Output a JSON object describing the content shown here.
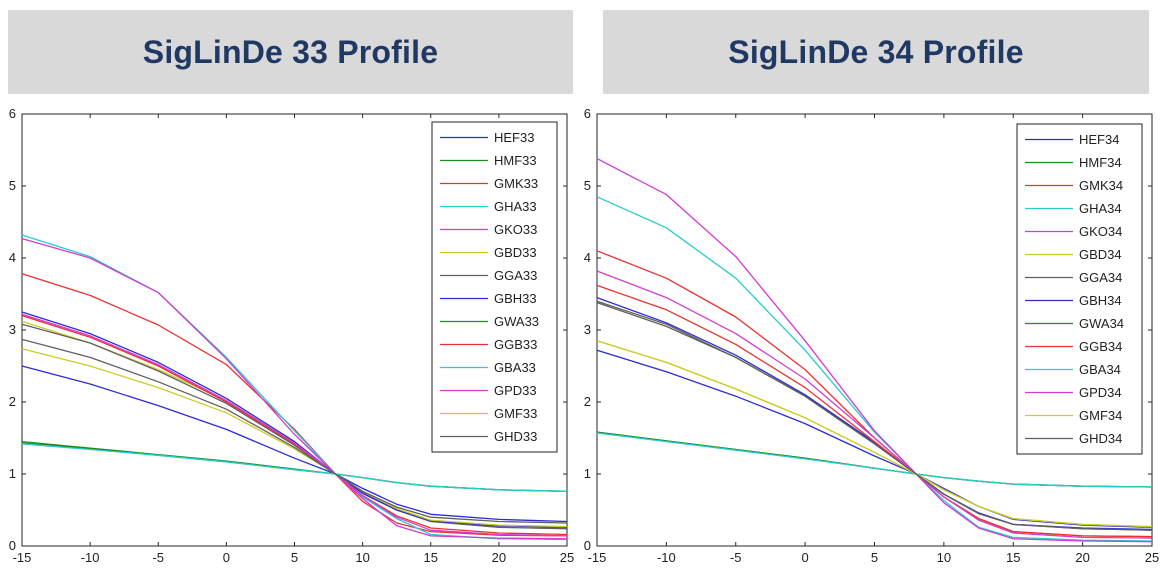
{
  "panels": [
    {
      "title": "SigLinDe 33 Profile"
    },
    {
      "title": "SigLinDe 34 Profile"
    }
  ],
  "chart_data": [
    {
      "type": "line",
      "title": "SigLinDe 33 Profile",
      "xlabel": "",
      "ylabel": "",
      "xlim": [
        -15,
        25
      ],
      "ylim": [
        0,
        6
      ],
      "xticks": [
        -15,
        -10,
        -5,
        0,
        5,
        10,
        15,
        20,
        25
      ],
      "yticks": [
        0,
        1,
        2,
        3,
        4,
        5,
        6
      ],
      "legend_position": "top-right",
      "grid": false,
      "x": [
        -15,
        -10,
        -5,
        0,
        5,
        8,
        10,
        12.5,
        15,
        20,
        25
      ],
      "series": [
        {
          "name": "HEF33",
          "color": "#2b2bd9",
          "values": [
            2.5,
            2.25,
            1.95,
            1.62,
            1.22,
            1.0,
            0.8,
            0.58,
            0.44,
            0.37,
            0.34
          ]
        },
        {
          "name": "HMF33",
          "color": "#1e8c1e",
          "values": [
            1.45,
            1.36,
            1.27,
            1.18,
            1.07,
            1.0,
            0.95,
            0.88,
            0.83,
            0.78,
            0.76
          ]
        },
        {
          "name": "GMK33",
          "color": "#ee3030",
          "values": [
            3.78,
            3.48,
            3.07,
            2.52,
            1.62,
            1.0,
            0.62,
            0.32,
            0.2,
            0.15,
            0.14
          ]
        },
        {
          "name": "GHA33",
          "color": "#28cccc",
          "values": [
            4.32,
            4.02,
            3.52,
            2.62,
            1.6,
            1.0,
            0.68,
            0.38,
            0.16,
            0.1,
            0.09
          ]
        },
        {
          "name": "GKO33",
          "color": "#d23cd2",
          "values": [
            4.27,
            4.0,
            3.52,
            2.6,
            1.55,
            1.0,
            0.66,
            0.28,
            0.14,
            0.11,
            0.1
          ]
        },
        {
          "name": "GBD33",
          "color": "#cccc28",
          "values": [
            3.12,
            2.82,
            2.45,
            2.02,
            1.43,
            1.0,
            0.74,
            0.5,
            0.34,
            0.26,
            0.24
          ]
        },
        {
          "name": "GGA33",
          "color": "#606060",
          "values": [
            3.08,
            2.82,
            2.43,
            1.98,
            1.4,
            1.0,
            0.74,
            0.5,
            0.34,
            0.26,
            0.24
          ]
        },
        {
          "name": "GBH33",
          "color": "#2b2bd9",
          "values": [
            3.25,
            2.95,
            2.55,
            2.05,
            1.45,
            1.0,
            0.73,
            0.5,
            0.35,
            0.28,
            0.26
          ]
        },
        {
          "name": "GWA33",
          "color": "#1e8c1e",
          "values": [
            1.43,
            1.35,
            1.26,
            1.17,
            1.06,
            1.0,
            0.95,
            0.88,
            0.83,
            0.78,
            0.76
          ]
        },
        {
          "name": "GGB33",
          "color": "#ee3030",
          "values": [
            3.2,
            2.9,
            2.5,
            2.0,
            1.42,
            1.0,
            0.7,
            0.42,
            0.25,
            0.18,
            0.16
          ]
        },
        {
          "name": "GBA33",
          "color": "#28cccc",
          "values": [
            1.42,
            1.34,
            1.26,
            1.17,
            1.06,
            1.0,
            0.95,
            0.88,
            0.83,
            0.78,
            0.76
          ]
        },
        {
          "name": "GPD33",
          "color": "#d23cd2",
          "values": [
            3.22,
            2.92,
            2.52,
            2.02,
            1.43,
            1.0,
            0.7,
            0.4,
            0.22,
            0.16,
            0.14
          ]
        },
        {
          "name": "GMF33",
          "color": "#cccc28",
          "values": [
            2.74,
            2.5,
            2.2,
            1.85,
            1.35,
            1.0,
            0.76,
            0.52,
            0.36,
            0.29,
            0.27
          ]
        },
        {
          "name": "GHD33",
          "color": "#606060",
          "values": [
            2.87,
            2.62,
            2.28,
            1.9,
            1.37,
            1.0,
            0.76,
            0.54,
            0.4,
            0.34,
            0.32
          ]
        }
      ]
    },
    {
      "type": "line",
      "title": "SigLinDe 34 Profile",
      "xlabel": "",
      "ylabel": "",
      "xlim": [
        -15,
        25
      ],
      "ylim": [
        0,
        6
      ],
      "xticks": [
        -15,
        -10,
        -5,
        0,
        5,
        10,
        15,
        20,
        25
      ],
      "yticks": [
        0,
        1,
        2,
        3,
        4,
        5,
        6
      ],
      "legend_position": "top-right",
      "grid": false,
      "x": [
        -15,
        -10,
        -5,
        0,
        5,
        8,
        10,
        12.5,
        15,
        20,
        25
      ],
      "series": [
        {
          "name": "HEF34",
          "color": "#2b2bd9",
          "values": [
            2.72,
            2.42,
            2.08,
            1.7,
            1.25,
            1.0,
            0.8,
            0.55,
            0.37,
            0.29,
            0.26
          ]
        },
        {
          "name": "HMF34",
          "color": "#1e8c1e",
          "values": [
            1.58,
            1.46,
            1.34,
            1.22,
            1.08,
            1.0,
            0.95,
            0.9,
            0.86,
            0.83,
            0.82
          ]
        },
        {
          "name": "GMK34",
          "color": "#ee3030",
          "values": [
            4.1,
            3.72,
            3.18,
            2.45,
            1.5,
            1.0,
            0.68,
            0.38,
            0.2,
            0.14,
            0.13
          ]
        },
        {
          "name": "GHA34",
          "color": "#28cccc",
          "values": [
            4.85,
            4.42,
            3.72,
            2.72,
            1.58,
            1.0,
            0.63,
            0.26,
            0.12,
            0.08,
            0.07
          ]
        },
        {
          "name": "GKO34",
          "color": "#d23cd2",
          "values": [
            5.38,
            4.88,
            4.02,
            2.85,
            1.6,
            1.0,
            0.6,
            0.25,
            0.1,
            0.07,
            0.06
          ]
        },
        {
          "name": "GBD34",
          "color": "#cccc28",
          "values": [
            2.85,
            2.55,
            2.18,
            1.78,
            1.3,
            1.0,
            0.78,
            0.55,
            0.38,
            0.3,
            0.27
          ]
        },
        {
          "name": "GGA34",
          "color": "#606060",
          "values": [
            3.38,
            3.05,
            2.62,
            2.08,
            1.42,
            1.0,
            0.72,
            0.45,
            0.3,
            0.24,
            0.22
          ]
        },
        {
          "name": "GBH34",
          "color": "#2b2bd9",
          "values": [
            3.45,
            3.1,
            2.65,
            2.1,
            1.44,
            1.0,
            0.72,
            0.46,
            0.3,
            0.25,
            0.23
          ]
        },
        {
          "name": "GWA34",
          "color": "#1e8c1e",
          "values": [
            1.58,
            1.46,
            1.34,
            1.22,
            1.08,
            1.0,
            0.95,
            0.9,
            0.86,
            0.83,
            0.82
          ]
        },
        {
          "name": "GGB34",
          "color": "#ee3030",
          "values": [
            3.62,
            3.28,
            2.8,
            2.2,
            1.45,
            1.0,
            0.68,
            0.38,
            0.2,
            0.14,
            0.13
          ]
        },
        {
          "name": "GBA34",
          "color": "#28cccc",
          "values": [
            1.57,
            1.45,
            1.33,
            1.21,
            1.08,
            1.0,
            0.95,
            0.9,
            0.86,
            0.83,
            0.82
          ]
        },
        {
          "name": "GPD34",
          "color": "#d23cd2",
          "values": [
            3.82,
            3.45,
            2.95,
            2.32,
            1.5,
            1.0,
            0.68,
            0.36,
            0.18,
            0.12,
            0.11
          ]
        },
        {
          "name": "GMF34",
          "color": "#cccc28",
          "values": [
            2.85,
            2.55,
            2.18,
            1.78,
            1.3,
            1.0,
            0.78,
            0.55,
            0.38,
            0.3,
            0.27
          ]
        },
        {
          "name": "GHD34",
          "color": "#606060",
          "values": [
            3.4,
            3.08,
            2.62,
            2.08,
            1.42,
            1.0,
            0.72,
            0.45,
            0.3,
            0.24,
            0.22
          ]
        }
      ]
    }
  ]
}
